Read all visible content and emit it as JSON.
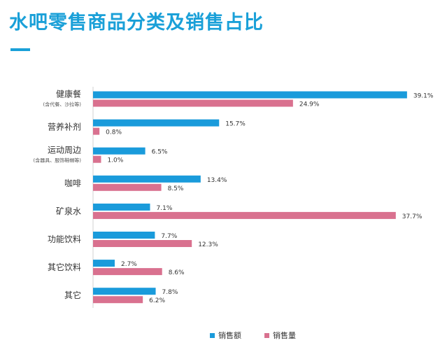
{
  "chart_data": {
    "type": "bar",
    "orientation": "horizontal",
    "title": "水吧零售商品分类及销售占比",
    "categories": [
      {
        "label": "健康餐",
        "sublabel": "(含代餐、沙拉等)"
      },
      {
        "label": "营养补剂",
        "sublabel": ""
      },
      {
        "label": "运动周边",
        "sublabel": "(含器具、服饰鞋帽等)"
      },
      {
        "label": "咖啡",
        "sublabel": ""
      },
      {
        "label": "矿泉水",
        "sublabel": ""
      },
      {
        "label": "功能饮料",
        "sublabel": ""
      },
      {
        "label": "其它饮料",
        "sublabel": ""
      },
      {
        "label": "其它",
        "sublabel": ""
      }
    ],
    "series": [
      {
        "name": "销售额",
        "color": "#1a9bdb",
        "values": [
          39.1,
          15.7,
          6.5,
          13.4,
          7.1,
          7.7,
          2.7,
          7.8
        ],
        "labels": [
          "39.1%",
          "15.7%",
          "6.5%",
          "13.4%",
          "7.1%",
          "7.7%",
          "2.7%",
          "7.8%"
        ]
      },
      {
        "name": "销售量",
        "color": "#d9718f",
        "values": [
          24.9,
          0.8,
          1.0,
          8.5,
          37.7,
          12.3,
          8.6,
          6.2
        ],
        "labels": [
          "24.9%",
          "0.8%",
          "1.0%",
          "8.5%",
          "37.7%",
          "12.3%",
          "8.6%",
          "6.2%"
        ]
      }
    ],
    "xlim": [
      0,
      40
    ],
    "grid": false,
    "legend": "bottom"
  }
}
